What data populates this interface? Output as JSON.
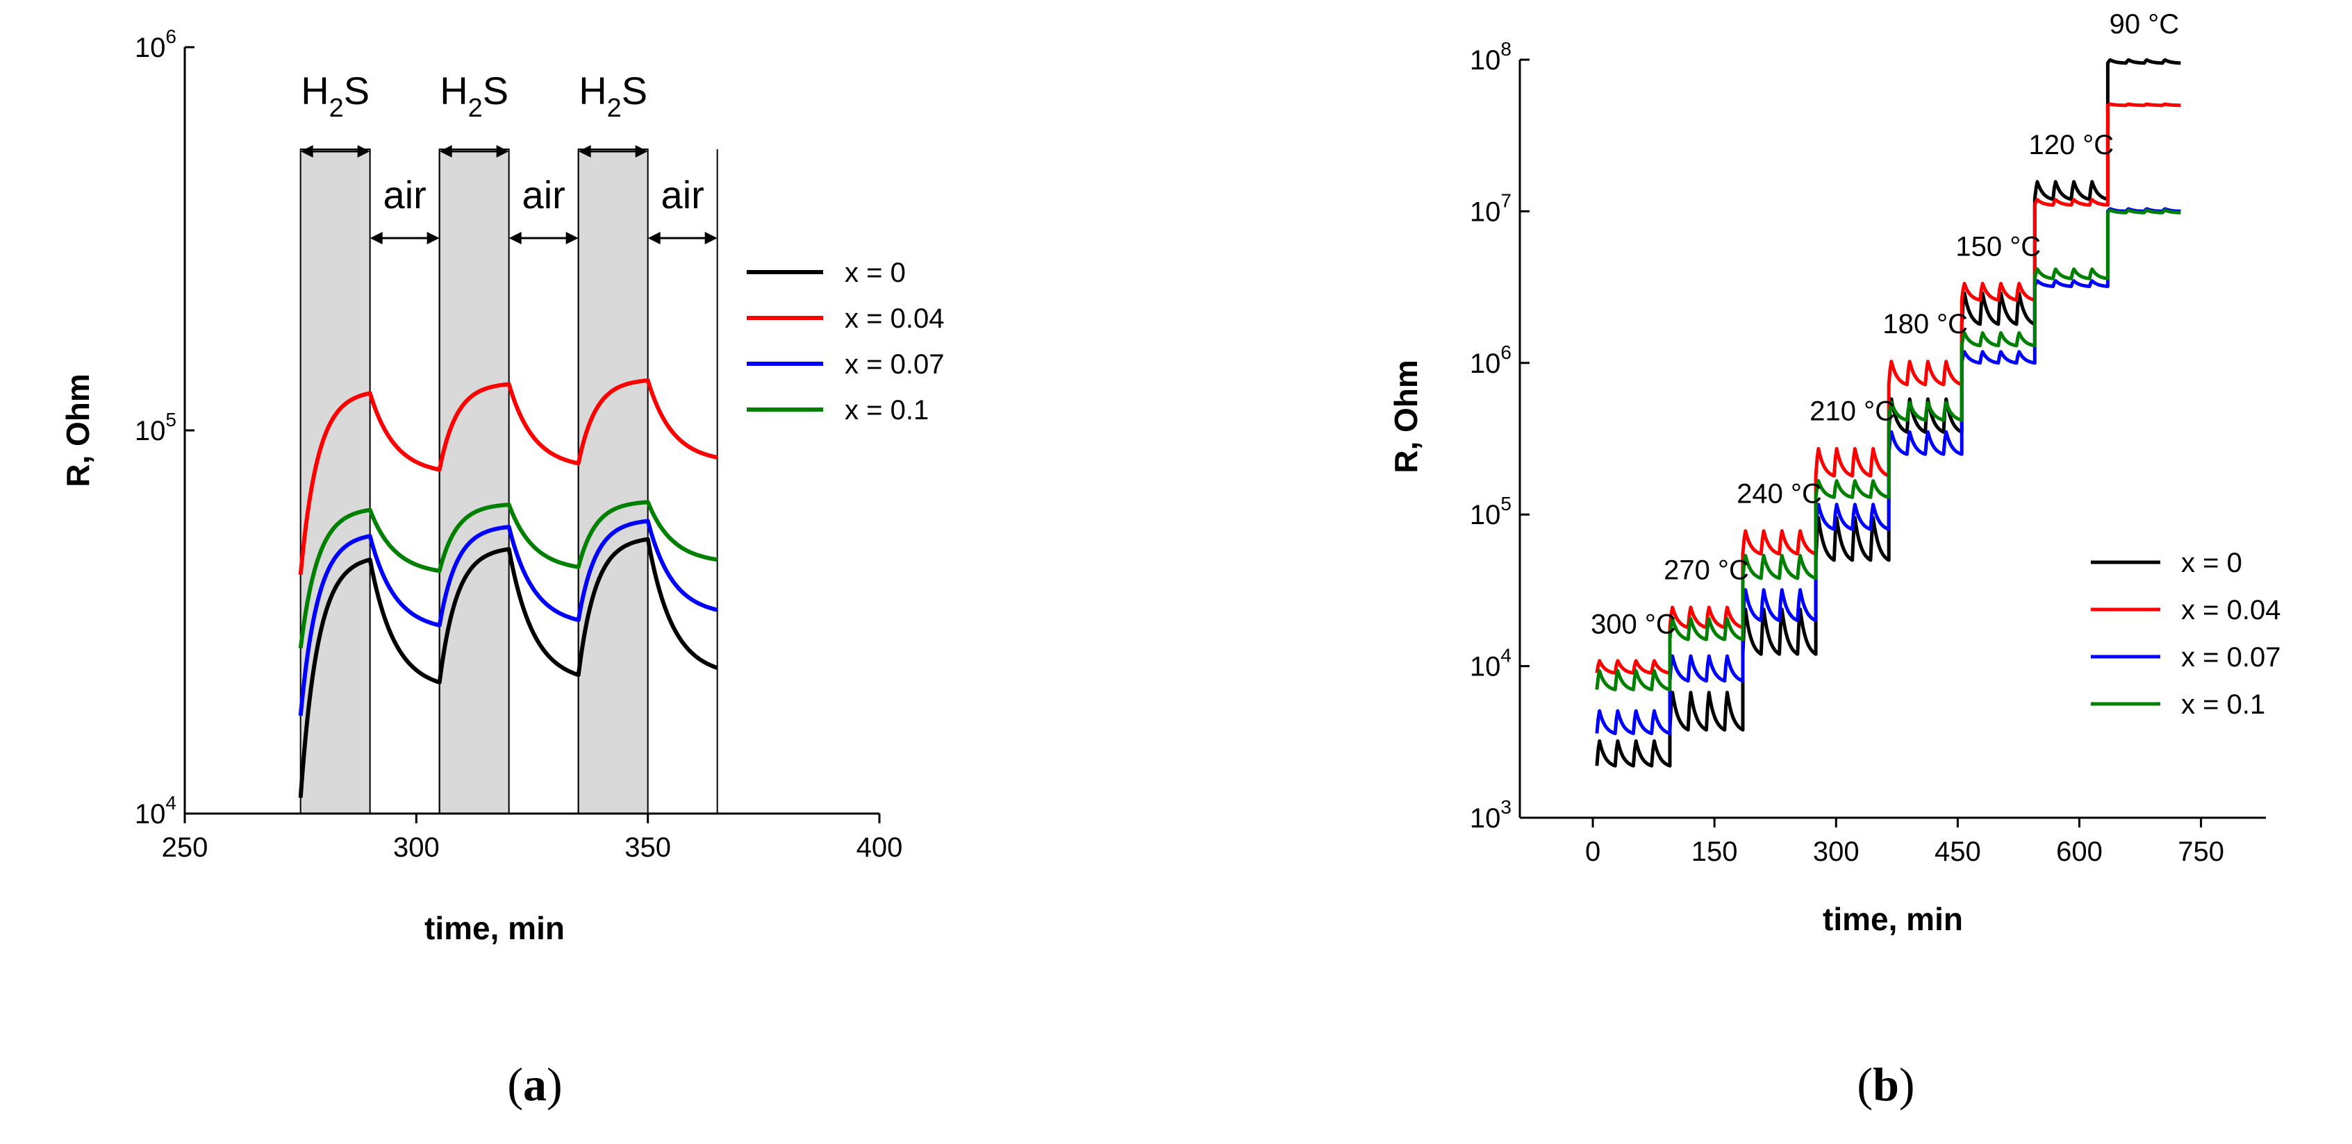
{
  "colors": {
    "x0": "#000000",
    "x004": "#ff0000",
    "x007": "#0000ff",
    "x01": "#008000",
    "shade": "#d9d9d9"
  },
  "chart_data": [
    {
      "type": "line",
      "title": "",
      "xlabel": "time, min",
      "ylabel": "R, Ohm",
      "caption_open": "(",
      "caption_letter": "a",
      "caption_close": ")",
      "xlim": [
        250,
        400
      ],
      "ylim": [
        10000,
        1000000
      ],
      "yscale": "log",
      "xticks": [
        "250",
        "300",
        "350",
        "400"
      ],
      "yticks": [
        "10",
        "10",
        "10"
      ],
      "ytick_exps": [
        "4",
        "5",
        "6"
      ],
      "gas_windows": [
        {
          "start": 275,
          "end": 290,
          "label_main": "H",
          "label_sub": "2",
          "label_end": "S"
        },
        {
          "start": 305,
          "end": 320,
          "label_main": "H",
          "label_sub": "2",
          "label_end": "S"
        },
        {
          "start": 335,
          "end": 350,
          "label_main": "H",
          "label_sub": "2",
          "label_end": "S"
        }
      ],
      "air_windows": [
        {
          "start": 290,
          "end": 305,
          "label": "air"
        },
        {
          "start": 320,
          "end": 335,
          "label": "air"
        },
        {
          "start": 350,
          "end": 365,
          "label": "air"
        }
      ],
      "series": [
        {
          "name": "x = 0",
          "color": "#000000",
          "cycles": [
            [
              11000,
              46000,
              22000
            ],
            [
              22000,
              49000,
              23000
            ],
            [
              23000,
              52000,
              24000
            ]
          ]
        },
        {
          "name": "x = 0.04",
          "color": "#ff0000",
          "cycles": [
            [
              42000,
              125000,
              79000
            ],
            [
              79000,
              132000,
              82000
            ],
            [
              82000,
              135000,
              85000
            ]
          ]
        },
        {
          "name": "x = 0.07",
          "color": "#0000ff",
          "cycles": [
            [
              18000,
              53000,
              31000
            ],
            [
              31000,
              56000,
              32000
            ],
            [
              32000,
              58000,
              34000
            ]
          ]
        },
        {
          "name": "x = 0.1",
          "color": "#008000",
          "cycles": [
            [
              27000,
              62000,
              43000
            ],
            [
              43000,
              64000,
              44000
            ],
            [
              44000,
              65000,
              46000
            ]
          ]
        }
      ],
      "legend": "right"
    },
    {
      "type": "line",
      "title": "",
      "xlabel": "time, min",
      "ylabel": "R, Ohm",
      "caption_open": "(",
      "caption_letter": "b",
      "caption_close": ")",
      "xlim": [
        -90,
        830
      ],
      "ylim": [
        1000,
        100000000
      ],
      "yscale": "log",
      "xticks": [
        "0",
        "150",
        "300",
        "450",
        "600",
        "750"
      ],
      "xtick_values": [
        0,
        150,
        300,
        450,
        600,
        750
      ],
      "yticks": [
        "10",
        "10",
        "10",
        "10",
        "10",
        "10"
      ],
      "ytick_exps": [
        "3",
        "4",
        "5",
        "6",
        "7",
        "8"
      ],
      "temperature_labels": [
        "300 °C",
        "270 °C",
        "240 °C",
        "210 °C",
        "180 °C",
        "150 °C",
        "120 °C",
        "90 °C"
      ],
      "steps": [
        {
          "start": 5,
          "end": 95,
          "low": {
            "x0": 2200,
            "x004": 9000,
            "x007": 3600,
            "x01": 7000
          },
          "high": {
            "x0": 3300,
            "x004": 11000,
            "x007": 5200,
            "x01": 9500
          }
        },
        {
          "start": 95,
          "end": 185,
          "low": {
            "x0": 3800,
            "x004": 18000,
            "x007": 8000,
            "x01": 15000
          },
          "high": {
            "x0": 7000,
            "x004": 25000,
            "x007": 12000,
            "x01": 21000
          }
        },
        {
          "start": 185,
          "end": 275,
          "low": {
            "x0": 12000,
            "x004": 55000,
            "x007": 20000,
            "x01": 38000
          },
          "high": {
            "x0": 25000,
            "x004": 80000,
            "x007": 33000,
            "x01": 55000
          }
        },
        {
          "start": 275,
          "end": 365,
          "low": {
            "x0": 50000,
            "x004": 180000,
            "x007": 80000,
            "x01": 130000
          },
          "high": {
            "x0": 100000,
            "x004": 280000,
            "x007": 120000,
            "x01": 170000
          }
        },
        {
          "start": 365,
          "end": 455,
          "low": {
            "x0": 350000,
            "x004": 720000,
            "x007": 250000,
            "x01": 420000
          },
          "high": {
            "x0": 600000,
            "x004": 1050000,
            "x007": 360000,
            "x01": 560000
          }
        },
        {
          "start": 455,
          "end": 545,
          "low": {
            "x0": 1800000,
            "x004": 2600000,
            "x007": 1000000,
            "x01": 1300000
          },
          "high": {
            "x0": 3000000,
            "x004": 3400000,
            "x007": 1200000,
            "x01": 1600000
          }
        },
        {
          "start": 545,
          "end": 635,
          "low": {
            "x0": 12000000,
            "x004": 11000000,
            "x007": 3200000,
            "x01": 3600000
          },
          "high": {
            "x0": 16000000,
            "x004": 12000000,
            "x007": 3500000,
            "x01": 4200000
          }
        },
        {
          "start": 635,
          "end": 725,
          "low": {
            "x0": 95000000,
            "x004": 50000000,
            "x007": 10000000,
            "x01": 9800000
          },
          "high": {
            "x0": 100000000,
            "x004": 51000000,
            "x007": 10400000,
            "x01": 10200000
          }
        }
      ],
      "series_names": [
        "x = 0",
        "x = 0.04",
        "x = 0.07",
        "x = 0.1"
      ],
      "legend": "bottom-right"
    }
  ]
}
